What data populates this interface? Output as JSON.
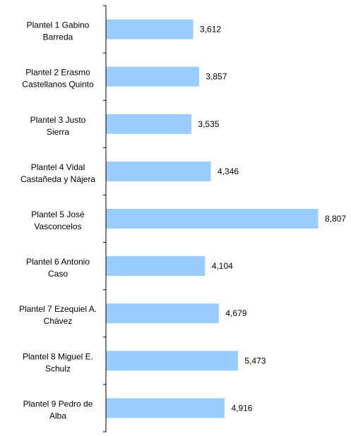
{
  "chart_data": {
    "type": "bar",
    "orientation": "horizontal",
    "title": "",
    "xlabel": "",
    "ylabel": "",
    "categories": [
      "Plantel 1 Gabino Barreda",
      "Plantel 2 Erasmo Castellanos Quinto",
      "Plantel 3 Justo Sierra",
      "Plantel 4 Vidal Castañeda y Nájera",
      "Plantel 5 José Vasconcelos",
      "Plantel 6 Antonio Caso",
      "Plantel 7 Ezequiel A. Chávez",
      "Plantel 8 Miguel E. Schulz",
      "Plantel 9 Pedro de Alba"
    ],
    "category_lines": [
      [
        "Plantel 1 Gabino",
        "Barreda"
      ],
      [
        "Plantel 2 Erasmo",
        "Castellanos Quinto"
      ],
      [
        "Plantel 3 Justo",
        "Sierra"
      ],
      [
        "Plantel 4 Vidal",
        "Castañeda y Nájera"
      ],
      [
        "Plantel 5 José",
        "Vasconcelos"
      ],
      [
        "Plantel 6 Antonio",
        "Caso"
      ],
      [
        "Plantel 7 Ezequiel A.",
        "Chávez"
      ],
      [
        "Plantel 8 Miguel E.",
        "Schulz"
      ],
      [
        "Plantel 9 Pedro de",
        "Alba"
      ]
    ],
    "values": [
      3612,
      3857,
      3535,
      4346,
      8807,
      4104,
      4679,
      5473,
      4916
    ],
    "value_labels": [
      "3,612",
      "3,857",
      "3,535",
      "4,346",
      "8,807",
      "4,104",
      "4,679",
      "5,473",
      "4,916"
    ],
    "xlim": [
      0,
      9050
    ],
    "grid": false,
    "legend": "none",
    "bar_color": "#99ccff",
    "axis_color": "#000000"
  }
}
